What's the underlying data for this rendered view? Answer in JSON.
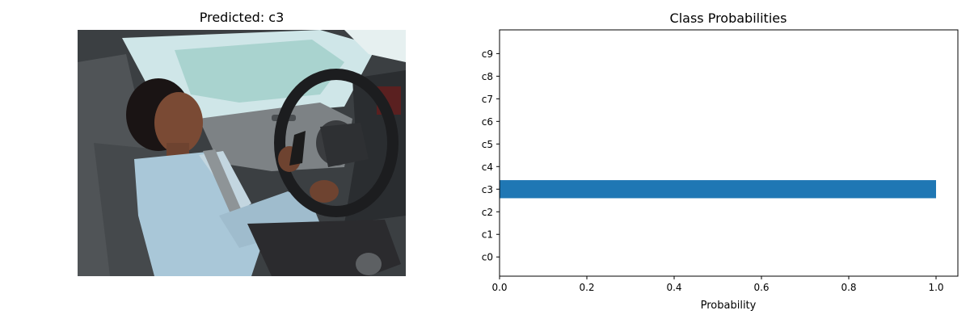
{
  "image_panel": {
    "title": "Predicted: c3"
  },
  "chart_data": {
    "type": "bar",
    "orientation": "horizontal",
    "title": "Class Probabilities",
    "xlabel": "Probability",
    "ylabel": "",
    "categories": [
      "c0",
      "c1",
      "c2",
      "c3",
      "c4",
      "c5",
      "c6",
      "c7",
      "c8",
      "c9"
    ],
    "values": [
      0.0,
      0.0,
      0.0,
      1.0,
      0.0,
      0.0,
      0.0,
      0.0,
      0.0,
      0.0
    ],
    "xlim": [
      0,
      1.05
    ],
    "xticks": [
      "0.0",
      "0.2",
      "0.4",
      "0.6",
      "0.8",
      "1.0"
    ],
    "bar_color": "#1f77b4",
    "grid": false
  }
}
